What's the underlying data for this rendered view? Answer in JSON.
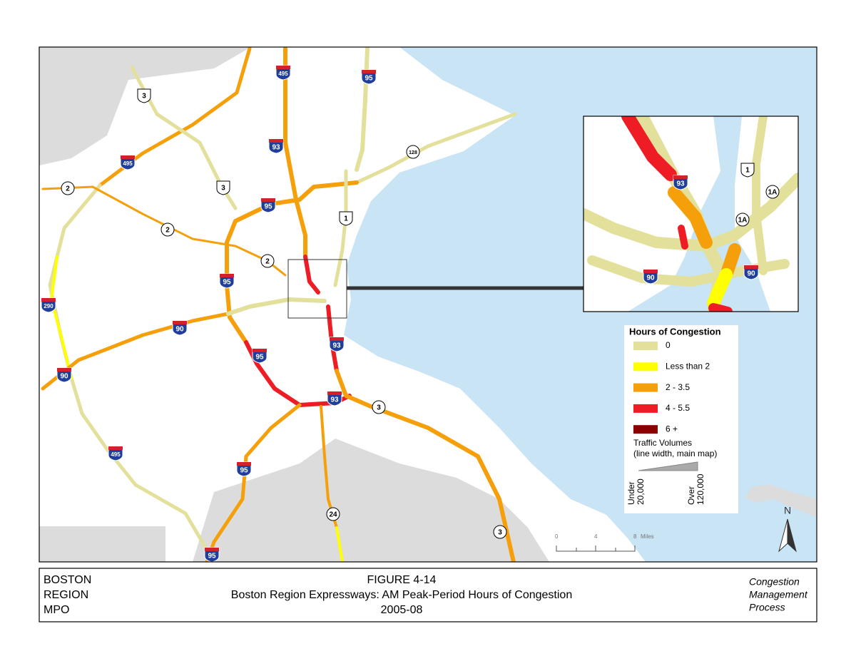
{
  "map": {
    "shields": [
      "495",
      "95",
      "3",
      "495",
      "93",
      "128",
      "2",
      "3",
      "95",
      "1",
      "2",
      "2",
      "95",
      "290",
      "90",
      "93",
      "95",
      "90",
      "93",
      "3",
      "495",
      "95",
      "24",
      "3",
      "95"
    ],
    "inset_shields": [
      "93",
      "1",
      "1A",
      "1A",
      "90",
      "90"
    ],
    "legend": {
      "title": "Hours of Congestion",
      "items": [
        {
          "label": "0",
          "color": "#e3e09b"
        },
        {
          "label": "Less than 2",
          "color": "#ffff00"
        },
        {
          "label": "2 - 3.5",
          "color": "#f5a00a"
        },
        {
          "label": "4 - 5.5",
          "color": "#ee1c24"
        },
        {
          "label": "6 +",
          "color": "#8b0000"
        }
      ],
      "volume_title": [
        "Traffic Volumes",
        "(line width, main map)"
      ],
      "volume_min": [
        "Under",
        "20,000"
      ],
      "volume_max": [
        "Over",
        "120,000"
      ]
    },
    "scale": {
      "ticks": [
        "0",
        "4",
        "8"
      ],
      "unit": "Miles"
    },
    "north": "N"
  },
  "footer": {
    "left": [
      "BOSTON",
      "REGION",
      "MPO"
    ],
    "figure": "FIGURE 4-14",
    "title": "Boston Region Expressways: AM Peak-Period Hours of Congestion",
    "years": "2005-08",
    "right": [
      "Congestion",
      "Management",
      "Process"
    ]
  }
}
